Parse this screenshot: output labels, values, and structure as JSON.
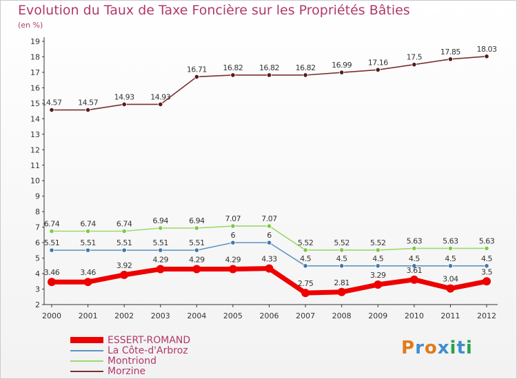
{
  "chart_data": {
    "type": "line",
    "title": "Evolution du Taux de Taxe Foncière sur les Propriétés Bâties",
    "ylabel": "(en %)",
    "xlabel": "",
    "categories": [
      "2000",
      "2001",
      "2002",
      "2003",
      "2004",
      "2005",
      "2006",
      "2007",
      "2008",
      "2009",
      "2010",
      "2011",
      "2012"
    ],
    "ylim": [
      2,
      19
    ],
    "yticks": [
      "2",
      "3",
      "4",
      "5",
      "6",
      "7",
      "8",
      "9",
      "10",
      "11",
      "12",
      "13",
      "14",
      "15",
      "16",
      "17",
      "18",
      "19"
    ],
    "series": [
      {
        "name": "Morzine",
        "color": "#7a2e2e",
        "dot": "#5a1a1a",
        "values": [
          14.57,
          14.57,
          14.93,
          14.93,
          16.71,
          16.82,
          16.82,
          16.82,
          16.99,
          17.16,
          17.5,
          17.85,
          18.03
        ],
        "labels": [
          "14.57",
          "14.57",
          "14.93",
          "14.93",
          "16.71",
          "16.82",
          "16.82",
          "16.82",
          "16.99",
          "17.16",
          "17.5",
          "17.85",
          "18.03"
        ]
      },
      {
        "name": "Montriond",
        "color": "#99d96b",
        "dot": "#7cc94a",
        "values": [
          6.74,
          6.74,
          6.74,
          6.94,
          6.94,
          7.07,
          7.07,
          5.52,
          5.52,
          5.52,
          5.63,
          5.63,
          5.63
        ],
        "labels": [
          "6.74",
          "6.74",
          "6.74",
          "6.94",
          "6.94",
          "7.07",
          "7.07",
          "5.52",
          "5.52",
          "5.52",
          "5.63",
          "5.63",
          "5.63"
        ]
      },
      {
        "name": "La Côte-d'Arbroz",
        "color": "#5b93c4",
        "dot": "#3f78b0",
        "values": [
          5.51,
          5.51,
          5.51,
          5.51,
          5.51,
          6,
          6,
          4.5,
          4.5,
          4.5,
          4.5,
          4.5,
          4.5
        ],
        "labels": [
          "5.51",
          "5.51",
          "5.51",
          "5.51",
          "5.51",
          "6",
          "6",
          "4.5",
          "4.5",
          "4.5",
          "4.5",
          "4.5",
          "4.5"
        ]
      },
      {
        "name": "ESSERT-ROMAND",
        "color": "#ee0000",
        "dot": "#ee0000",
        "values": [
          3.46,
          3.46,
          3.92,
          4.29,
          4.29,
          4.29,
          4.33,
          2.75,
          2.81,
          3.29,
          3.61,
          3.04,
          3.5
        ],
        "labels": [
          "3.46",
          "3.46",
          "3.92",
          "4.29",
          "4.29",
          "4.29",
          "4.33",
          "2.75",
          "2.81",
          "3.29",
          "3.61",
          "3.04",
          "3.5"
        ]
      }
    ],
    "legend": [
      {
        "name": "ESSERT-ROMAND",
        "color": "#ee0000"
      },
      {
        "name": "La Côte-d'Arbroz",
        "color": "#5b93c4"
      },
      {
        "name": "Montriond",
        "color": "#99d96b"
      },
      {
        "name": "Morzine",
        "color": "#7a2e2e"
      }
    ],
    "legend_position": "bottom-left",
    "grid": false
  },
  "logo": {
    "text": "Proxiti",
    "letters": [
      "P",
      "r",
      "o",
      "x",
      "i",
      "t",
      "i"
    ],
    "colors": [
      "#e07b1a",
      "#3f8ed0",
      "#e07b1a",
      "#3f8ed0",
      "#2aa34a",
      "#3f8ed0",
      "#2aa34a"
    ]
  }
}
